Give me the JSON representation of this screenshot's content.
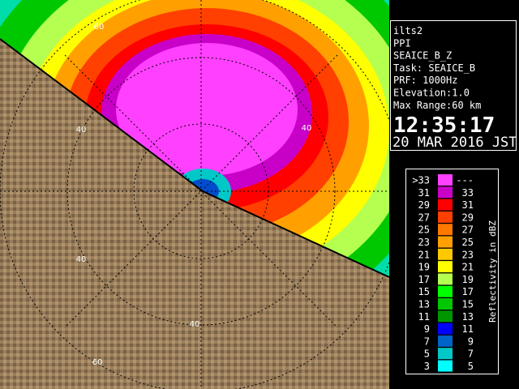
{
  "panel": {
    "lines": [
      "ilts2",
      "PPI",
      "SEAICE_B_Z",
      "Task: SEAICE_B",
      "PRF: 1000Hz",
      "Elevation:1.0",
      "Max Range:60 km"
    ],
    "time": "12:35:17",
    "date": "20 MAR 2016 JST"
  },
  "legend": {
    "title": "Reflectivity in dBZ",
    "rows": [
      {
        "low": ">33",
        "high": "---",
        "color": "#ff40ff"
      },
      {
        "low": "31",
        "high": "33",
        "color": "#c800c8"
      },
      {
        "low": "29",
        "high": "31",
        "color": "#ff0000"
      },
      {
        "low": "27",
        "high": "29",
        "color": "#ff4000"
      },
      {
        "low": "25",
        "high": "27",
        "color": "#ff7800"
      },
      {
        "low": "23",
        "high": "25",
        "color": "#ffa000"
      },
      {
        "low": "21",
        "high": "23",
        "color": "#ffc800"
      },
      {
        "low": "19",
        "high": "21",
        "color": "#ffff00"
      },
      {
        "low": "17",
        "high": "19",
        "color": "#b4ff50"
      },
      {
        "low": "15",
        "high": "17",
        "color": "#00ff00"
      },
      {
        "low": "13",
        "high": "15",
        "color": "#00c800"
      },
      {
        "low": "11",
        "high": "13",
        "color": "#009600"
      },
      {
        "low": "9",
        "high": "11",
        "color": "#0000ff"
      },
      {
        "low": "7",
        "high": "9",
        "color": "#0064c8"
      },
      {
        "low": "5",
        "high": "7",
        "color": "#00c8c8"
      },
      {
        "low": "3",
        "high": "5",
        "color": "#00ffff"
      }
    ]
  },
  "map": {
    "range_labels": [
      "60",
      "40",
      "40",
      "40",
      "40",
      "60"
    ]
  }
}
